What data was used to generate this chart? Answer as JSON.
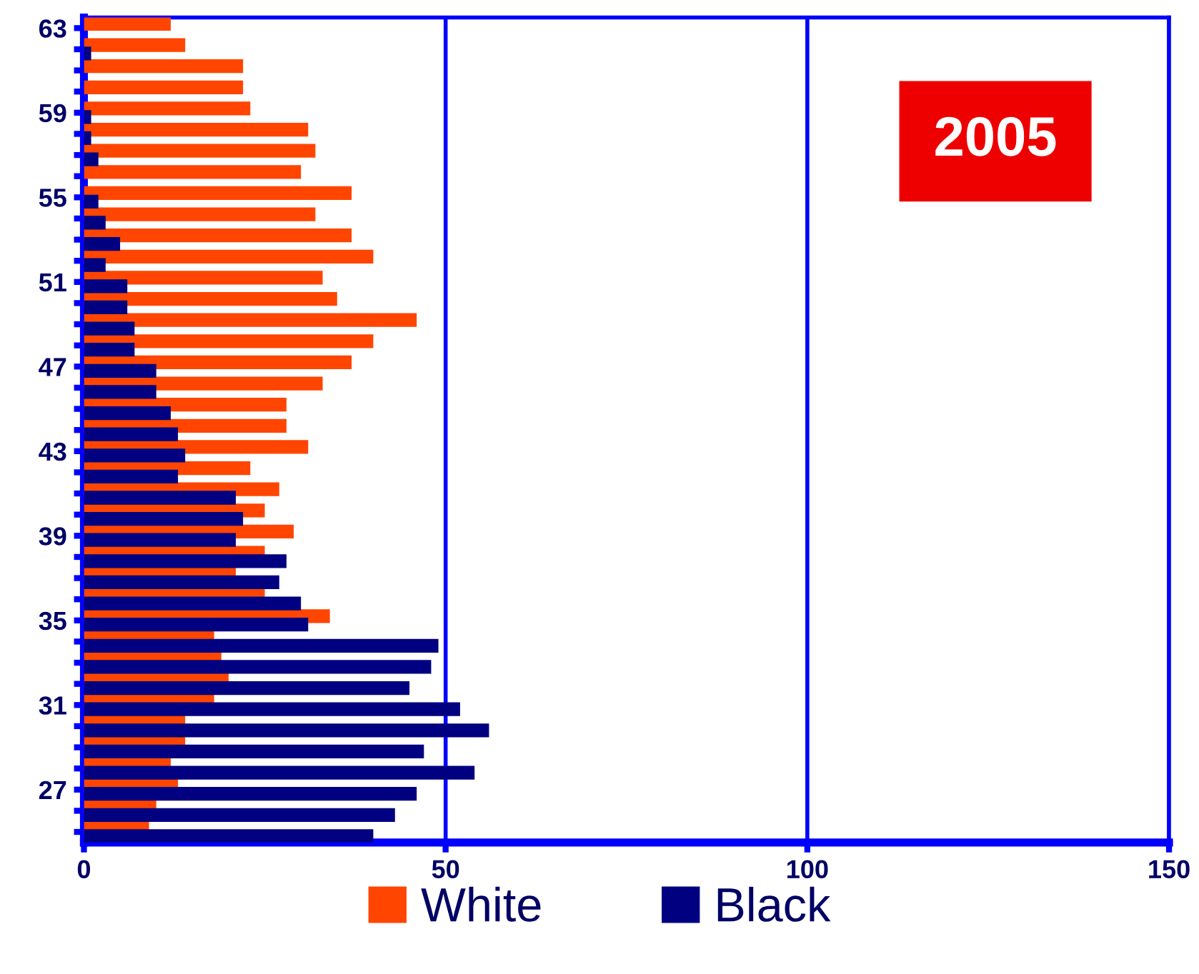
{
  "chart_data": {
    "type": "bar",
    "orientation": "horizontal",
    "categories": [
      "63",
      null,
      null,
      null,
      "59",
      null,
      null,
      null,
      "55",
      null,
      null,
      null,
      "51",
      null,
      null,
      null,
      "47",
      null,
      null,
      null,
      "43",
      null,
      null,
      null,
      "39",
      null,
      null,
      null,
      "35",
      null,
      null,
      null,
      "31",
      null,
      null,
      null,
      "27",
      null,
      null
    ],
    "series": [
      {
        "name": "White",
        "color": "#ff4500",
        "values": [
          12,
          14,
          22,
          22,
          23,
          31,
          32,
          30,
          37,
          32,
          37,
          40,
          33,
          35,
          46,
          40,
          37,
          33,
          28,
          28,
          31,
          23,
          27,
          25,
          29,
          25,
          21,
          25,
          34,
          18,
          19,
          20,
          18,
          14,
          14,
          12,
          13,
          10,
          9
        ]
      },
      {
        "name": "Black",
        "color": "#000080",
        "values": [
          0,
          1,
          0,
          0,
          1,
          1,
          2,
          0,
          2,
          3,
          5,
          3,
          6,
          6,
          7,
          7,
          10,
          10,
          12,
          13,
          14,
          13,
          21,
          22,
          21,
          28,
          27,
          30,
          31,
          49,
          48,
          45,
          52,
          56,
          47,
          54,
          46,
          43,
          40
        ]
      }
    ],
    "xlim": [
      0,
      150
    ],
    "xticks": [
      0,
      50,
      100,
      150
    ],
    "grid": "x",
    "legend": "bottom",
    "annotations": [
      "2005"
    ]
  }
}
